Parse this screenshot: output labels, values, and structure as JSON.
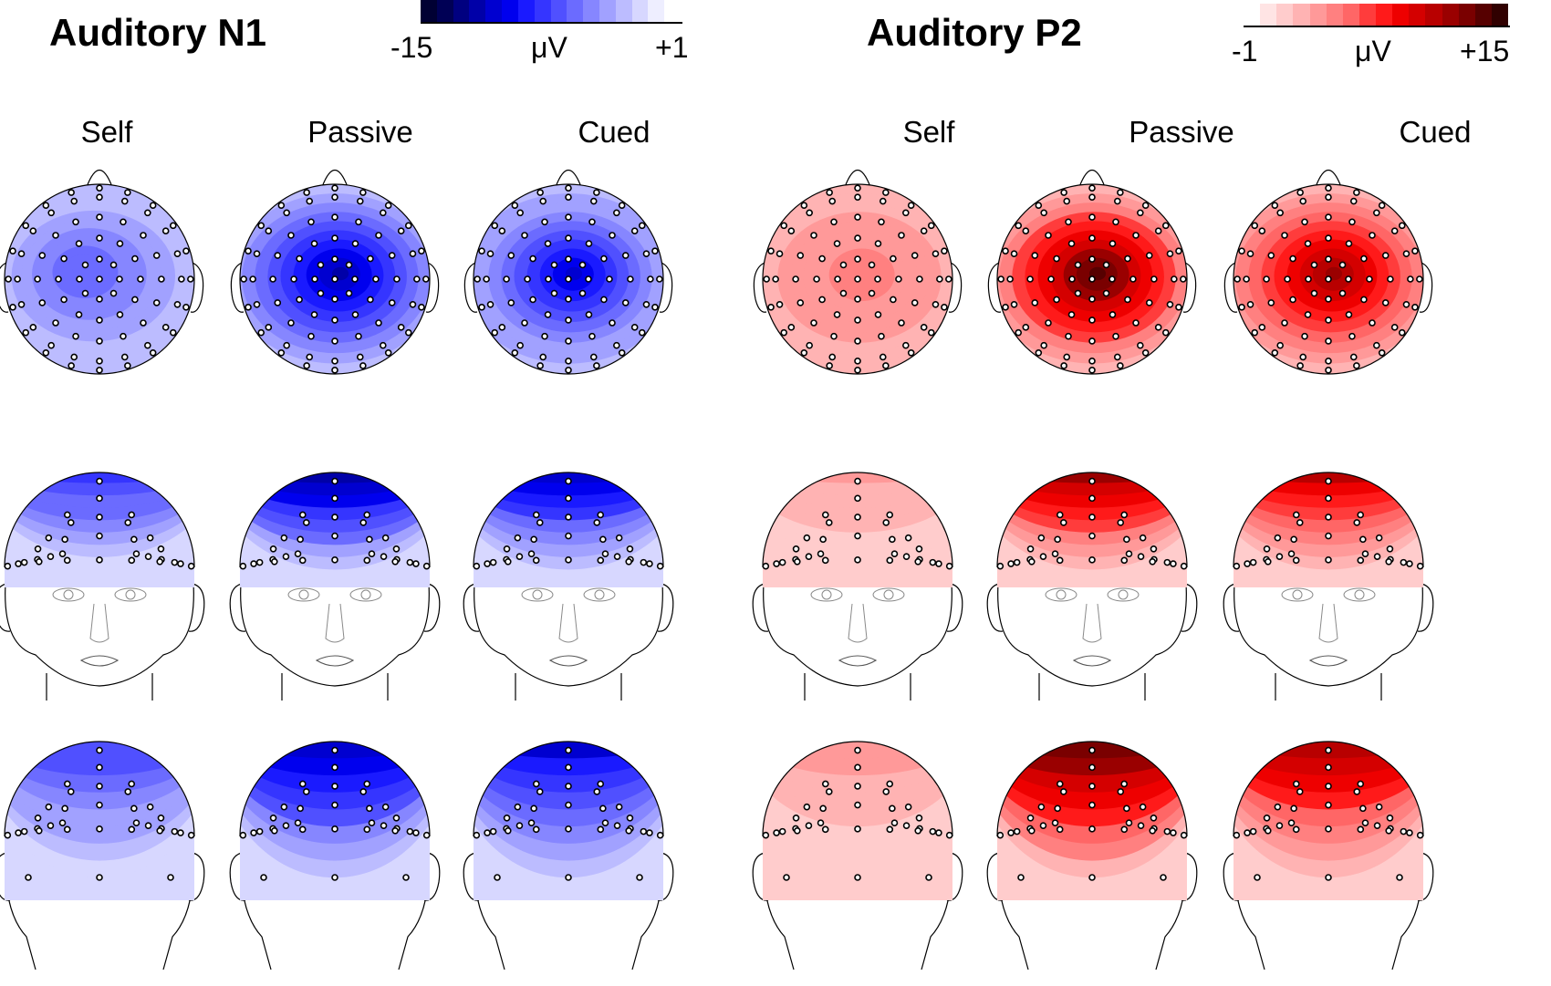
{
  "panels": [
    {
      "title": "Auditory N1",
      "colorbar": {
        "min_label": "-15",
        "unit_label": "μV",
        "max_label": "+1",
        "colors": [
          "#000033",
          "#000055",
          "#000080",
          "#0000a8",
          "#0000d0",
          "#0000ee",
          "#1a1aff",
          "#3535ff",
          "#5050ff",
          "#6b6bff",
          "#8686ff",
          "#a1a1ff",
          "#bcbcff",
          "#d7d7ff",
          "#eeeeff",
          "#ffffff"
        ]
      },
      "conditions": [
        {
          "label": "Self",
          "top_peak": 0.38,
          "front_peak": 0.5,
          "side_peak": 0.45
        },
        {
          "label": "Passive",
          "top_peak": 0.78,
          "front_peak": 0.8,
          "side_peak": 0.75
        },
        {
          "label": "Cued",
          "top_peak": 0.7,
          "front_peak": 0.72,
          "side_peak": 0.68
        }
      ]
    },
    {
      "title": "Auditory P2",
      "colorbar": {
        "min_label": "-1",
        "unit_label": "μV",
        "max_label": "+15",
        "colors": [
          "#ffffff",
          "#ffe4e4",
          "#ffcccc",
          "#ffb3b3",
          "#ff9999",
          "#ff8080",
          "#ff6666",
          "#ff3c3c",
          "#ff1a1a",
          "#ee0000",
          "#d40000",
          "#b80000",
          "#9a0000",
          "#7a0000",
          "#560000",
          "#300000"
        ]
      },
      "conditions": [
        {
          "label": "Self",
          "top_peak": 0.3,
          "front_peak": 0.18,
          "side_peak": 0.2
        },
        {
          "label": "Passive",
          "top_peak": 0.95,
          "front_peak": 0.75,
          "side_peak": 0.88
        },
        {
          "label": "Cued",
          "top_peak": 0.82,
          "front_peak": 0.68,
          "side_peak": 0.72
        }
      ]
    }
  ]
}
